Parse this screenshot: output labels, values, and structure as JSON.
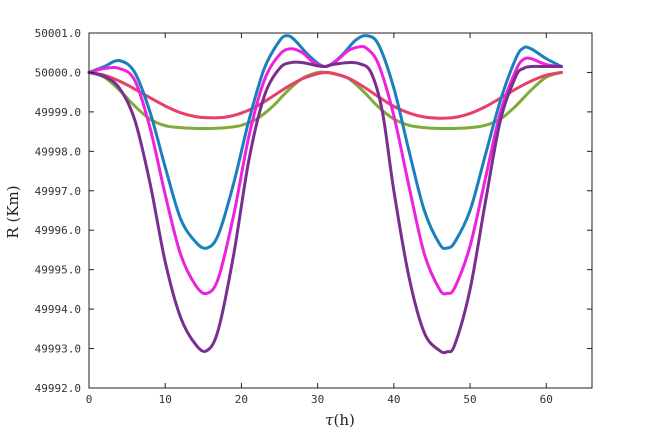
{
  "chart_data": {
    "type": "line",
    "xlabel_italic": "τ",
    "xlabel_rest": "(h)",
    "ylabel": "R (Km)",
    "xlim": [
      0,
      66
    ],
    "ylim": [
      49992.0,
      50001.0
    ],
    "xticks": [
      "0",
      "10",
      "20",
      "30",
      "40",
      "50",
      "60"
    ],
    "xtick_values": [
      0,
      10,
      20,
      30,
      40,
      50,
      60
    ],
    "yticks": [
      "49992.0",
      "49993.0",
      "49994.0",
      "49995.0",
      "49996.0",
      "49997.0",
      "49998.0",
      "49999.0",
      "50000.0",
      "50001.0"
    ],
    "ytick_values": [
      49992,
      49993,
      49994,
      49995,
      49996,
      49997,
      49998,
      49999,
      50000,
      50001
    ],
    "grid": false,
    "series": [
      {
        "color": "#7fab3a",
        "x": [
          0,
          2,
          4,
          6,
          8,
          10,
          12,
          14,
          16,
          18,
          20,
          22,
          24,
          26,
          28,
          30,
          31,
          32,
          34,
          36,
          38,
          40,
          42,
          44,
          46,
          48,
          50,
          52,
          54,
          56,
          58,
          60,
          62
        ],
        "y": [
          50000.0,
          49999.88,
          49999.55,
          49999.15,
          49998.82,
          49998.65,
          49998.6,
          49998.58,
          49998.58,
          49998.6,
          49998.66,
          49998.82,
          49999.12,
          49999.52,
          49999.85,
          50000.0,
          50000.0,
          49999.97,
          49999.85,
          49999.52,
          49999.12,
          49998.82,
          49998.66,
          49998.6,
          49998.58,
          49998.58,
          49998.6,
          49998.66,
          49998.82,
          49999.15,
          49999.55,
          49999.88,
          50000.0
        ]
      },
      {
        "color": "#e8406a",
        "x": [
          0,
          2,
          4,
          6,
          8,
          10,
          12,
          14,
          16,
          18,
          20,
          22,
          24,
          26,
          28,
          30,
          31,
          32,
          34,
          36,
          38,
          40,
          42,
          44,
          46,
          48,
          50,
          52,
          54,
          56,
          58,
          60,
          62
        ],
        "y": [
          50000.0,
          49999.93,
          49999.78,
          49999.58,
          49999.36,
          49999.15,
          49998.98,
          49998.88,
          49998.85,
          49998.87,
          49998.97,
          49999.14,
          49999.38,
          49999.63,
          49999.84,
          49999.97,
          50000.0,
          49999.98,
          49999.86,
          49999.64,
          49999.38,
          49999.14,
          49998.97,
          49998.87,
          49998.84,
          49998.86,
          49998.96,
          49999.13,
          49999.35,
          49999.58,
          49999.78,
          49999.93,
          50000.0
        ]
      },
      {
        "color": "#1a80bb",
        "x": [
          0,
          2,
          4,
          6,
          8,
          10,
          12,
          14,
          15.5,
          17,
          19,
          21,
          23,
          25,
          26,
          27,
          29,
          31,
          33,
          35,
          36.5,
          38,
          40,
          42,
          44,
          46,
          47,
          48,
          50,
          52,
          54,
          56,
          57,
          58,
          60,
          62
        ],
        "y": [
          50000.0,
          50000.15,
          50000.3,
          50000.0,
          49999.0,
          49997.6,
          49996.3,
          49995.7,
          49995.55,
          49995.9,
          49997.2,
          49998.8,
          50000.1,
          50000.8,
          50000.93,
          50000.82,
          50000.4,
          50000.15,
          50000.4,
          50000.82,
          50000.93,
          50000.7,
          49999.6,
          49998.0,
          49996.5,
          49995.65,
          49995.55,
          49995.7,
          49996.5,
          49997.9,
          49999.3,
          50000.35,
          50000.62,
          50000.6,
          50000.35,
          50000.15
        ]
      },
      {
        "color": "#ee22dd",
        "x": [
          0,
          2,
          4,
          6,
          8,
          10,
          12,
          14,
          15.5,
          17,
          19,
          21,
          23,
          25,
          26.5,
          28,
          29.5,
          31,
          32.5,
          34,
          35.5,
          36.5,
          38,
          40,
          42,
          44,
          46,
          47,
          48,
          50,
          52,
          54,
          56,
          57,
          58,
          60,
          62
        ],
        "y": [
          50000.0,
          50000.1,
          50000.1,
          49999.8,
          49998.6,
          49996.9,
          49995.4,
          49994.6,
          49994.4,
          49994.8,
          49996.4,
          49998.4,
          49999.8,
          50000.45,
          50000.6,
          50000.5,
          50000.25,
          50000.15,
          50000.3,
          50000.55,
          50000.65,
          50000.6,
          50000.2,
          49998.9,
          49997.1,
          49995.4,
          49994.5,
          49994.4,
          49994.55,
          49995.6,
          49997.3,
          49999.0,
          50000.05,
          50000.33,
          50000.35,
          50000.2,
          50000.15
        ]
      },
      {
        "color": "#7a2e8e",
        "x": [
          0,
          2,
          4,
          6,
          8,
          10,
          12,
          14,
          15.5,
          17,
          19,
          21,
          23,
          25,
          26.5,
          28,
          30,
          31,
          32,
          34,
          35.5,
          37,
          38.5,
          40,
          42,
          44,
          46,
          47,
          48,
          50,
          52,
          54,
          56,
          57,
          58,
          60,
          62
        ],
        "y": [
          50000.0,
          49999.9,
          49999.6,
          49998.8,
          49997.2,
          49995.2,
          49993.8,
          49993.1,
          49992.95,
          49993.5,
          49995.4,
          49997.8,
          49999.4,
          50000.1,
          50000.25,
          50000.25,
          50000.17,
          50000.15,
          50000.2,
          50000.25,
          50000.22,
          50000.0,
          49999.0,
          49997.0,
          49994.8,
          49993.4,
          49992.95,
          49992.92,
          49993.1,
          49994.5,
          49996.7,
          49998.8,
          49999.9,
          50000.1,
          50000.15,
          50000.15,
          50000.15
        ]
      }
    ]
  }
}
